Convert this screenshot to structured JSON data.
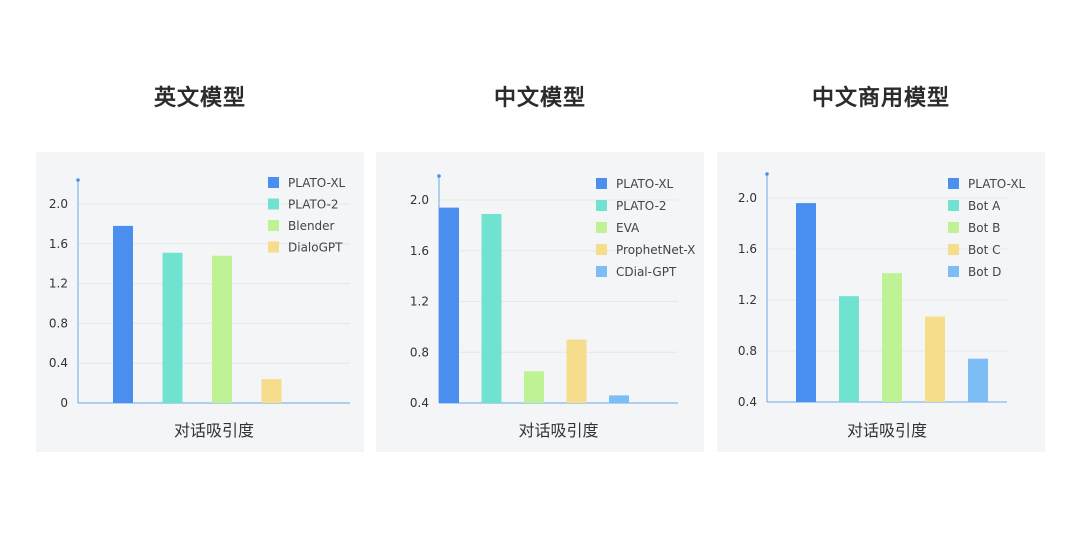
{
  "chart_data": [
    {
      "type": "bar",
      "title": "英文模型",
      "xlabel": "对话吸引度",
      "ylabel": "",
      "ylim": [
        0,
        2.2
      ],
      "yticks": [
        "0",
        "0.4",
        "0.8",
        "1.2",
        "1.6",
        "2.0"
      ],
      "legend_position": "top-right",
      "series": [
        {
          "name": "PLATO-XL",
          "value": 1.78,
          "color": "#4a8ff0"
        },
        {
          "name": "PLATO-2",
          "value": 1.51,
          "color": "#6fe3d0"
        },
        {
          "name": "Blender",
          "value": 1.48,
          "color": "#bff294"
        },
        {
          "name": "DialoGPT",
          "value": 0.24,
          "color": "#f6dd8c"
        }
      ]
    },
    {
      "type": "bar",
      "title": "中文模型",
      "xlabel": "对话吸引度",
      "ylabel": "",
      "ylim": [
        0.4,
        2.1
      ],
      "yticks": [
        "0.4",
        "0.8",
        "1.2",
        "1.6",
        "2.0"
      ],
      "legend_position": "top-right",
      "series": [
        {
          "name": "PLATO-XL",
          "value": 1.94,
          "color": "#4a8ff0"
        },
        {
          "name": "PLATO-2",
          "value": 1.89,
          "color": "#6fe3d0"
        },
        {
          "name": "EVA",
          "value": 0.65,
          "color": "#bff294"
        },
        {
          "name": "ProphetNet-X",
          "value": 0.9,
          "color": "#f6dd8c"
        },
        {
          "name": "CDial-GPT",
          "value": 0.46,
          "color": "#7cbdf5"
        }
      ]
    },
    {
      "type": "bar",
      "title": "中文商用模型",
      "xlabel": "对话吸引度",
      "ylabel": "",
      "ylim": [
        0.4,
        2.1
      ],
      "yticks": [
        "0.4",
        "0.8",
        "1.2",
        "1.6",
        "2.0"
      ],
      "legend_position": "top-right",
      "series": [
        {
          "name": "PLATO-XL",
          "value": 1.96,
          "color": "#4a8ff0"
        },
        {
          "name": "Bot A",
          "value": 1.23,
          "color": "#6fe3d0"
        },
        {
          "name": "Bot B",
          "value": 1.41,
          "color": "#bff294"
        },
        {
          "name": "Bot C",
          "value": 1.07,
          "color": "#f6dd8c"
        },
        {
          "name": "Bot D",
          "value": 0.74,
          "color": "#7cbdf5"
        }
      ]
    }
  ]
}
